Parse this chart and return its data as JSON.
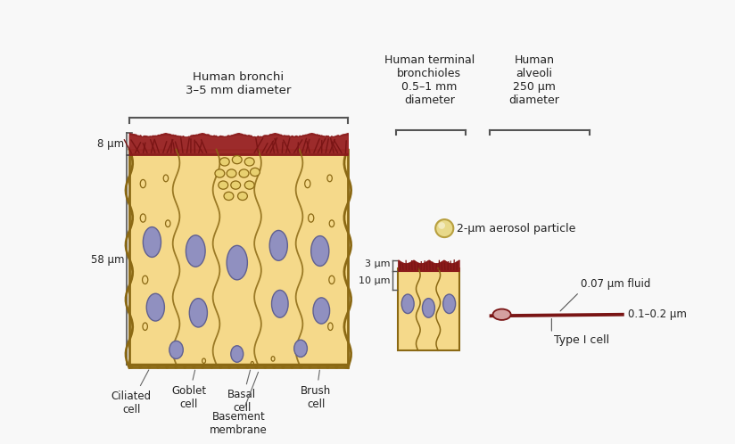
{
  "bg_color": "#f8f8f8",
  "cell_body_color": "#f5d98a",
  "cell_body_color2": "#f0ca70",
  "cell_outline_color": "#8B6914",
  "mucus_color": "#8B1a1a",
  "mucus_mid": "#a83030",
  "cilia_color": "#7a1515",
  "nucleus_color": "#9090c0",
  "nucleus_outline": "#606090",
  "vesicle_fill": "#e8d070",
  "vesicle_outline": "#8B6914",
  "bracket_color": "#555555",
  "text_color": "#222222",
  "aerosol_color": "#e8d98a",
  "aerosol_outline": "#b8a040",
  "type1_body_color": "#7a1515",
  "type1_nucleus_color": "#d4a0a0",
  "bronchi_label": "Human bronchi\n3–5 mm diameter",
  "bronchioles_label": "Human terminal\nbronchioles\n0.5–1 mm\ndiameter",
  "alveoli_label": "Human\nalveoli\n250 μm\ndiameter",
  "dim_8um": "8 μm",
  "dim_58um": "58 μm",
  "dim_3um": "3 μm",
  "dim_10um": "10 μm",
  "dim_007um": "0.07 μm fluid",
  "dim_01_02um": "0.1–0.2 μm",
  "aerosol_label": "2-μm aerosol particle",
  "type1_label": "Type I cell"
}
